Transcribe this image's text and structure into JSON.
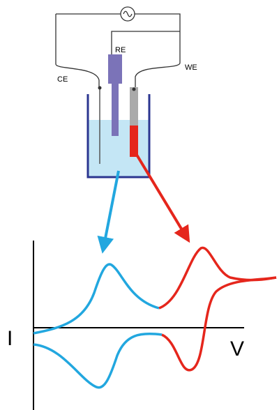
{
  "labels": {
    "re": "RE",
    "ce": "CE",
    "we": "WE",
    "current": "I",
    "voltage": "V"
  }
}
